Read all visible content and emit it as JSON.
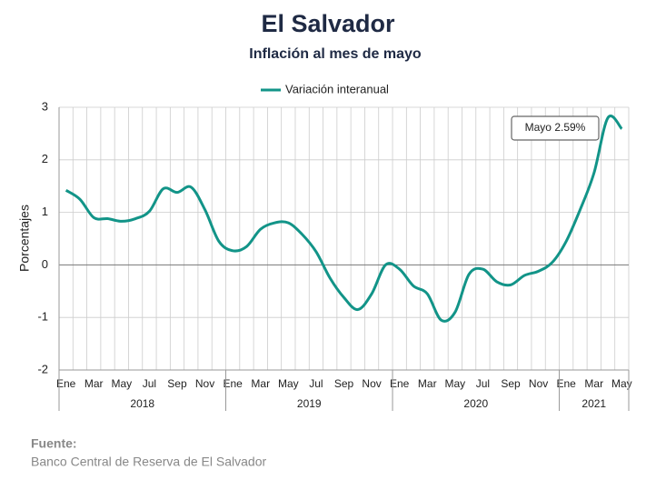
{
  "chart_data": {
    "type": "line",
    "title": "El Salvador",
    "subtitle": "Inflación al mes de mayo",
    "ylabel": "Porcentajes",
    "annotation": "Mayo 2.59%",
    "source_label": "Fuente:",
    "source": "Banco Central de Reserva de El Salvador",
    "legend": "top",
    "grid": true,
    "categories": [
      "Ene",
      null,
      "Mar",
      null,
      "May",
      null,
      "Jul",
      null,
      "Sep",
      null,
      "Nov",
      null,
      "Ene",
      null,
      "Mar",
      null,
      "May",
      null,
      "Jul",
      null,
      "Sep",
      null,
      "Nov",
      null,
      "Ene",
      null,
      "Mar",
      null,
      "May",
      null,
      "Jul",
      null,
      "Sep",
      null,
      "Nov",
      null,
      "Ene",
      null,
      "Mar",
      null,
      "May"
    ],
    "x_groups": [
      {
        "label": "2018",
        "count": 12
      },
      {
        "label": "2019",
        "count": 12
      },
      {
        "label": "2020",
        "count": 12
      },
      {
        "label": "2021",
        "count": 5
      }
    ],
    "series": [
      {
        "name": "Variación interanual",
        "color": "#129488",
        "values": [
          1.42,
          1.25,
          0.9,
          0.88,
          0.83,
          0.88,
          1.02,
          1.45,
          1.38,
          1.48,
          1.05,
          0.45,
          0.27,
          0.35,
          0.68,
          0.8,
          0.8,
          0.58,
          0.25,
          -0.25,
          -0.62,
          -0.85,
          -0.55,
          0.0,
          -0.08,
          -0.4,
          -0.55,
          -1.05,
          -0.9,
          -0.18,
          -0.08,
          -0.32,
          -0.38,
          -0.2,
          -0.12,
          0.05,
          0.45,
          1.05,
          1.75,
          2.8,
          2.59
        ]
      }
    ],
    "ylim": [
      -2,
      3
    ],
    "yticks": [
      -2,
      -1,
      0,
      1,
      2,
      3
    ]
  }
}
